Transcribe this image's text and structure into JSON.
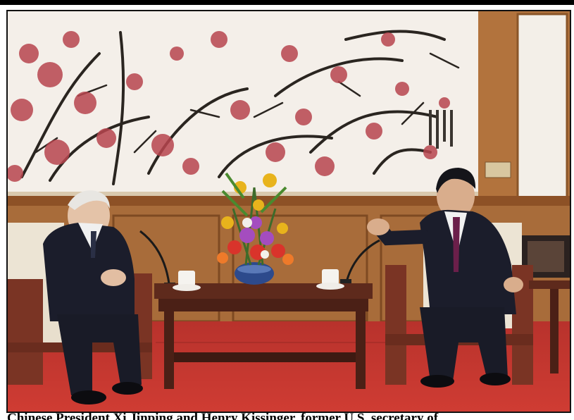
{
  "photo": {
    "colors": {
      "wall_panel": "#b77b49",
      "painting_bg": "#f4efe9",
      "blossom": "#b8454e",
      "carpet": "#c3362f",
      "table_wood": "#5e2a1c",
      "chair_cushion": "#ece4d4",
      "suit": "#1b1d2b",
      "tie": "#6b1f4a"
    }
  },
  "caption": {
    "text": "Chinese President Xi Jinping and Henry Kissinger, former U.S. secretary of"
  }
}
